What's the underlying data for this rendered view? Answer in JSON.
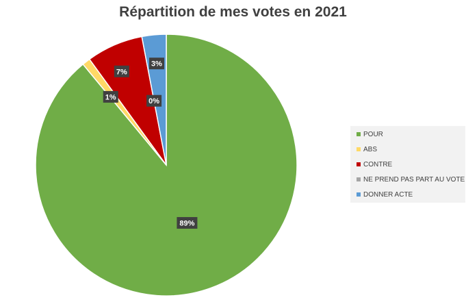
{
  "chart_data": {
    "type": "pie",
    "title": "Répartition de mes votes en 2021",
    "start_angle_deg": 0,
    "direction": "clockwise",
    "legend_position": "right",
    "slices": [
      {
        "label": "POUR",
        "value": 89,
        "percent_label": "89%",
        "color": "#70ad47"
      },
      {
        "label": "ABS",
        "value": 1,
        "percent_label": "1%",
        "color": "#ffd966"
      },
      {
        "label": "CONTRE",
        "value": 7,
        "percent_label": "7%",
        "color": "#c00000"
      },
      {
        "label": "NE PREND PAS PART AU VOTE",
        "value": 0,
        "percent_label": "0%",
        "color": "#a5a5a5"
      },
      {
        "label": "DONNER ACTE",
        "value": 3,
        "percent_label": "3%",
        "color": "#5b9bd5"
      }
    ]
  }
}
